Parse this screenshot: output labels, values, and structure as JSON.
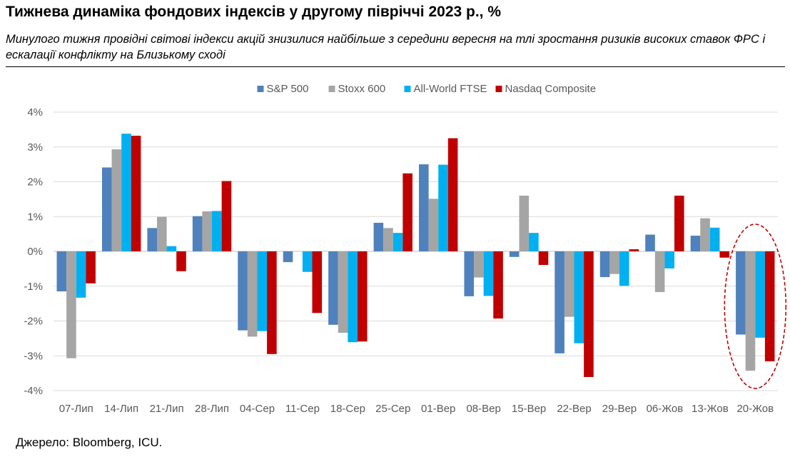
{
  "header": {
    "title": "Тижнева динаміка фондових індексів у другому півріччі 2023 р., %",
    "subtitle": "Минулого тижня провідні світові індекси акцій знизилися найбільше з середини вересня на тлі зростання ризиків високих ставок ФРС і ескалації конфлікту на Близькому сході"
  },
  "footer": {
    "source": "Джерело: Bloomberg, ICU."
  },
  "chart_data": {
    "type": "bar",
    "title": "Тижнева динаміка фондових індексів у другому півріччі 2023 р., %",
    "xlabel": "",
    "ylabel": "",
    "ylim": [
      -4,
      4
    ],
    "yticks": [
      4,
      3,
      2,
      1,
      0,
      -1,
      -2,
      -3,
      -4
    ],
    "ytick_labels": [
      "4%",
      "3%",
      "2%",
      "1%",
      "0%",
      "-1%",
      "-2%",
      "-3%",
      "-4%"
    ],
    "grid": true,
    "legend_position": "top-center",
    "categories": [
      "07-Лип",
      "14-Лип",
      "21-Лип",
      "28-Лип",
      "04-Сер",
      "11-Сер",
      "18-Сер",
      "25-Сер",
      "01-Вер",
      "08-Вер",
      "15-Вер",
      "22-Вер",
      "29-Вер",
      "06-Жов",
      "13-Жов",
      "20-Жов"
    ],
    "series": [
      {
        "name": "S&P 500",
        "color": "#4F81BD",
        "values": [
          -1.15,
          2.41,
          0.67,
          1.01,
          -2.27,
          -0.31,
          -2.11,
          0.82,
          2.5,
          -1.29,
          -0.16,
          -2.93,
          -0.74,
          0.48,
          0.45,
          -2.39
        ]
      },
      {
        "name": "Stoxx 600",
        "color": "#A5A5A5",
        "values": [
          -3.07,
          2.93,
          0.99,
          1.15,
          -2.45,
          0.0,
          -2.34,
          0.67,
          1.51,
          -0.75,
          1.6,
          -1.88,
          -0.65,
          -1.17,
          0.95,
          -3.43
        ]
      },
      {
        "name": "All-World FTSE",
        "color": "#00B0F0",
        "values": [
          -1.33,
          3.38,
          0.15,
          1.16,
          -2.29,
          -0.59,
          -2.61,
          0.53,
          2.49,
          -1.28,
          0.53,
          -2.64,
          -0.99,
          -0.49,
          0.68,
          -2.48
        ]
      },
      {
        "name": "Nasdaq Composite",
        "color": "#C00000",
        "values": [
          -0.92,
          3.32,
          -0.57,
          2.02,
          -2.95,
          -1.77,
          -2.59,
          2.24,
          3.25,
          -1.93,
          -0.39,
          -3.61,
          0.06,
          1.6,
          -0.18,
          -3.16
        ]
      }
    ],
    "annotation": {
      "type": "dashed-ellipse",
      "category": "20-Жов",
      "color": "#C00000"
    }
  }
}
